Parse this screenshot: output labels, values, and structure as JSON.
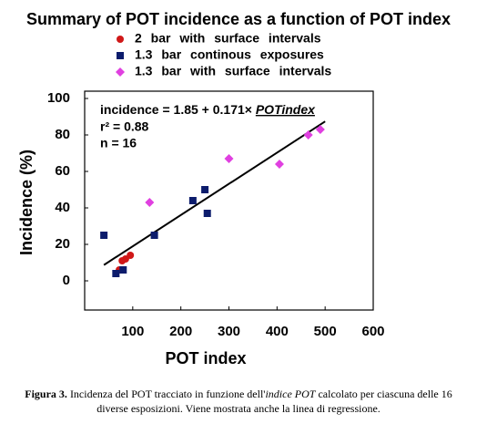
{
  "chart_data": {
    "type": "scatter",
    "title": "Summary of POT incidence as a function of POT index",
    "xlabel": "POT index",
    "ylabel": "Incidence (%)",
    "xlim": [
      0,
      600
    ],
    "xticks": [
      100,
      200,
      300,
      400,
      500,
      600
    ],
    "ylim": [
      -16,
      104
    ],
    "yticks": [
      0,
      20,
      40,
      60,
      80,
      100
    ],
    "series": [
      {
        "name": "2 bar with surface intervals",
        "color": "#d01818",
        "marker": "circle",
        "x": [
          72,
          78,
          85,
          95
        ],
        "values": [
          6,
          11,
          12,
          14
        ]
      },
      {
        "name": "1.3 bar continous exposures",
        "color": "#0c1c6c",
        "marker": "square",
        "x": [
          40,
          65,
          80,
          145,
          225,
          250,
          255
        ],
        "values": [
          25,
          4,
          6,
          25,
          44,
          50,
          37
        ]
      },
      {
        "name": "1.3 bar with surface intervals",
        "color": "#e040e0",
        "marker": "diamond",
        "x": [
          135,
          300,
          405,
          465,
          490
        ],
        "values": [
          43,
          67,
          64,
          80,
          83
        ]
      }
    ],
    "regression": {
      "x": [
        40,
        500
      ],
      "values": [
        8.7,
        87.4
      ]
    },
    "annotations": [
      "incidence = 1.85 + 0.171×",
      "POTindex",
      "r² = 0.88",
      "n = 16"
    ],
    "caption": [
      "Figura 3.",
      " Incidenza del POT tracciato in funzione dell'",
      "indice POT",
      " calcolato per ciascuna delle 16 diverse esposizioni. Viene mostrata anche la linea di regressione."
    ]
  }
}
